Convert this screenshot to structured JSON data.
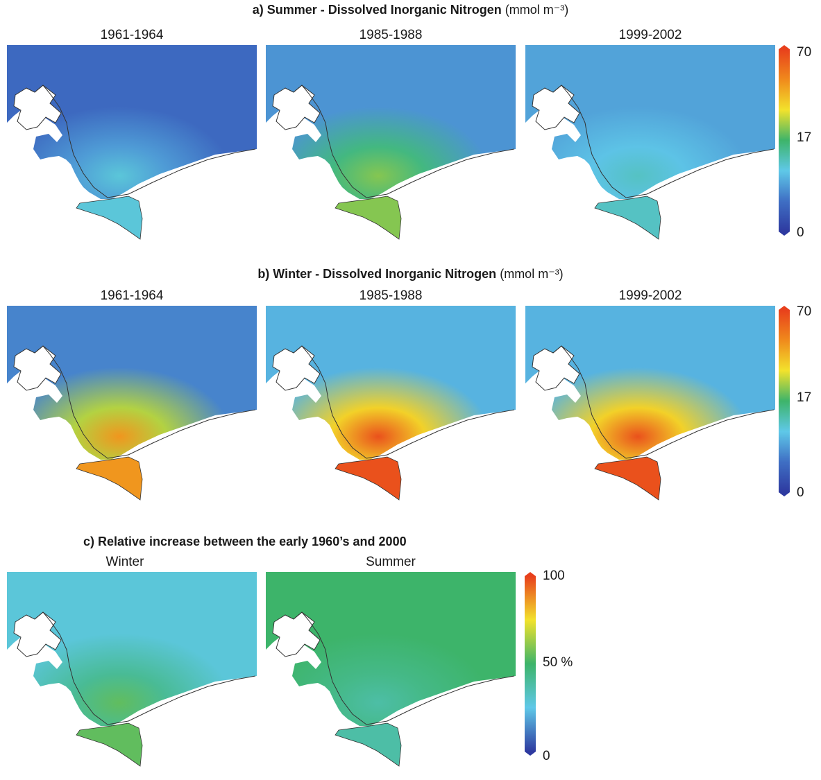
{
  "sections": [
    {
      "id": "a",
      "title_bold": "a) Summer - Dissolved Inorganic Nitrogen",
      "title_unit": "(mmol m⁻³)",
      "panels": [
        "1961-1964",
        "1985-1988",
        "1999-2002"
      ],
      "colorbar_ticks": [
        "70",
        "17",
        "0"
      ]
    },
    {
      "id": "b",
      "title_bold": "b) Winter - Dissolved Inorganic Nitrogen",
      "title_unit": "(mmol m⁻³)",
      "panels": [
        "1961-1964",
        "1985-1988",
        "1999-2002"
      ],
      "colorbar_ticks": [
        "70",
        "17",
        "0"
      ]
    },
    {
      "id": "c",
      "title_bold": "c) Relative increase between the early 1960’s and 2000",
      "panels": [
        "Winter",
        "Summer"
      ],
      "colorbar_ticks": [
        "100",
        "50 %",
        "0"
      ]
    }
  ],
  "chart_data": [
    {
      "type": "heatmap",
      "title": "a) Summer - Dissolved Inorganic Nitrogen (mmol m⁻³)",
      "panels": [
        "1961-1964",
        "1985-1988",
        "1999-2002"
      ],
      "colorbar": {
        "ticks": [
          0,
          17,
          70
        ],
        "colors": [
          "#2e3aa0",
          "#3f6fc4",
          "#5fc8e8",
          "#3db46a",
          "#f2e22c",
          "#f08a1c",
          "#e8401c"
        ]
      },
      "offshore_level": [
        5,
        8,
        9
      ],
      "southern_lagoon_level": [
        12,
        24,
        13
      ]
    },
    {
      "type": "heatmap",
      "title": "b) Winter - Dissolved Inorganic Nitrogen (mmol m⁻³)",
      "panels": [
        "1961-1964",
        "1985-1988",
        "1999-2002"
      ],
      "colorbar": {
        "ticks": [
          0,
          17,
          70
        ],
        "colors": [
          "#2e3aa0",
          "#3f6fc4",
          "#5fc8e8",
          "#3db46a",
          "#f2e22c",
          "#f08a1c",
          "#e8401c"
        ]
      },
      "offshore_level": [
        7,
        10,
        10
      ],
      "southern_lagoon_level": [
        50,
        66,
        66
      ]
    },
    {
      "type": "heatmap",
      "title": "c) Relative increase between the early 1960’s and 2000",
      "panels": [
        "Winter",
        "Summer"
      ],
      "colorbar": {
        "ticks": [
          0,
          50,
          100
        ],
        "unit": "%",
        "colors": [
          "#2e3aa0",
          "#5fc8e8",
          "#3db46a",
          "#f2e22c",
          "#e8401c"
        ]
      },
      "offshore_level": [
        28,
        50
      ],
      "southern_lagoon_level": [
        55,
        38
      ]
    }
  ]
}
